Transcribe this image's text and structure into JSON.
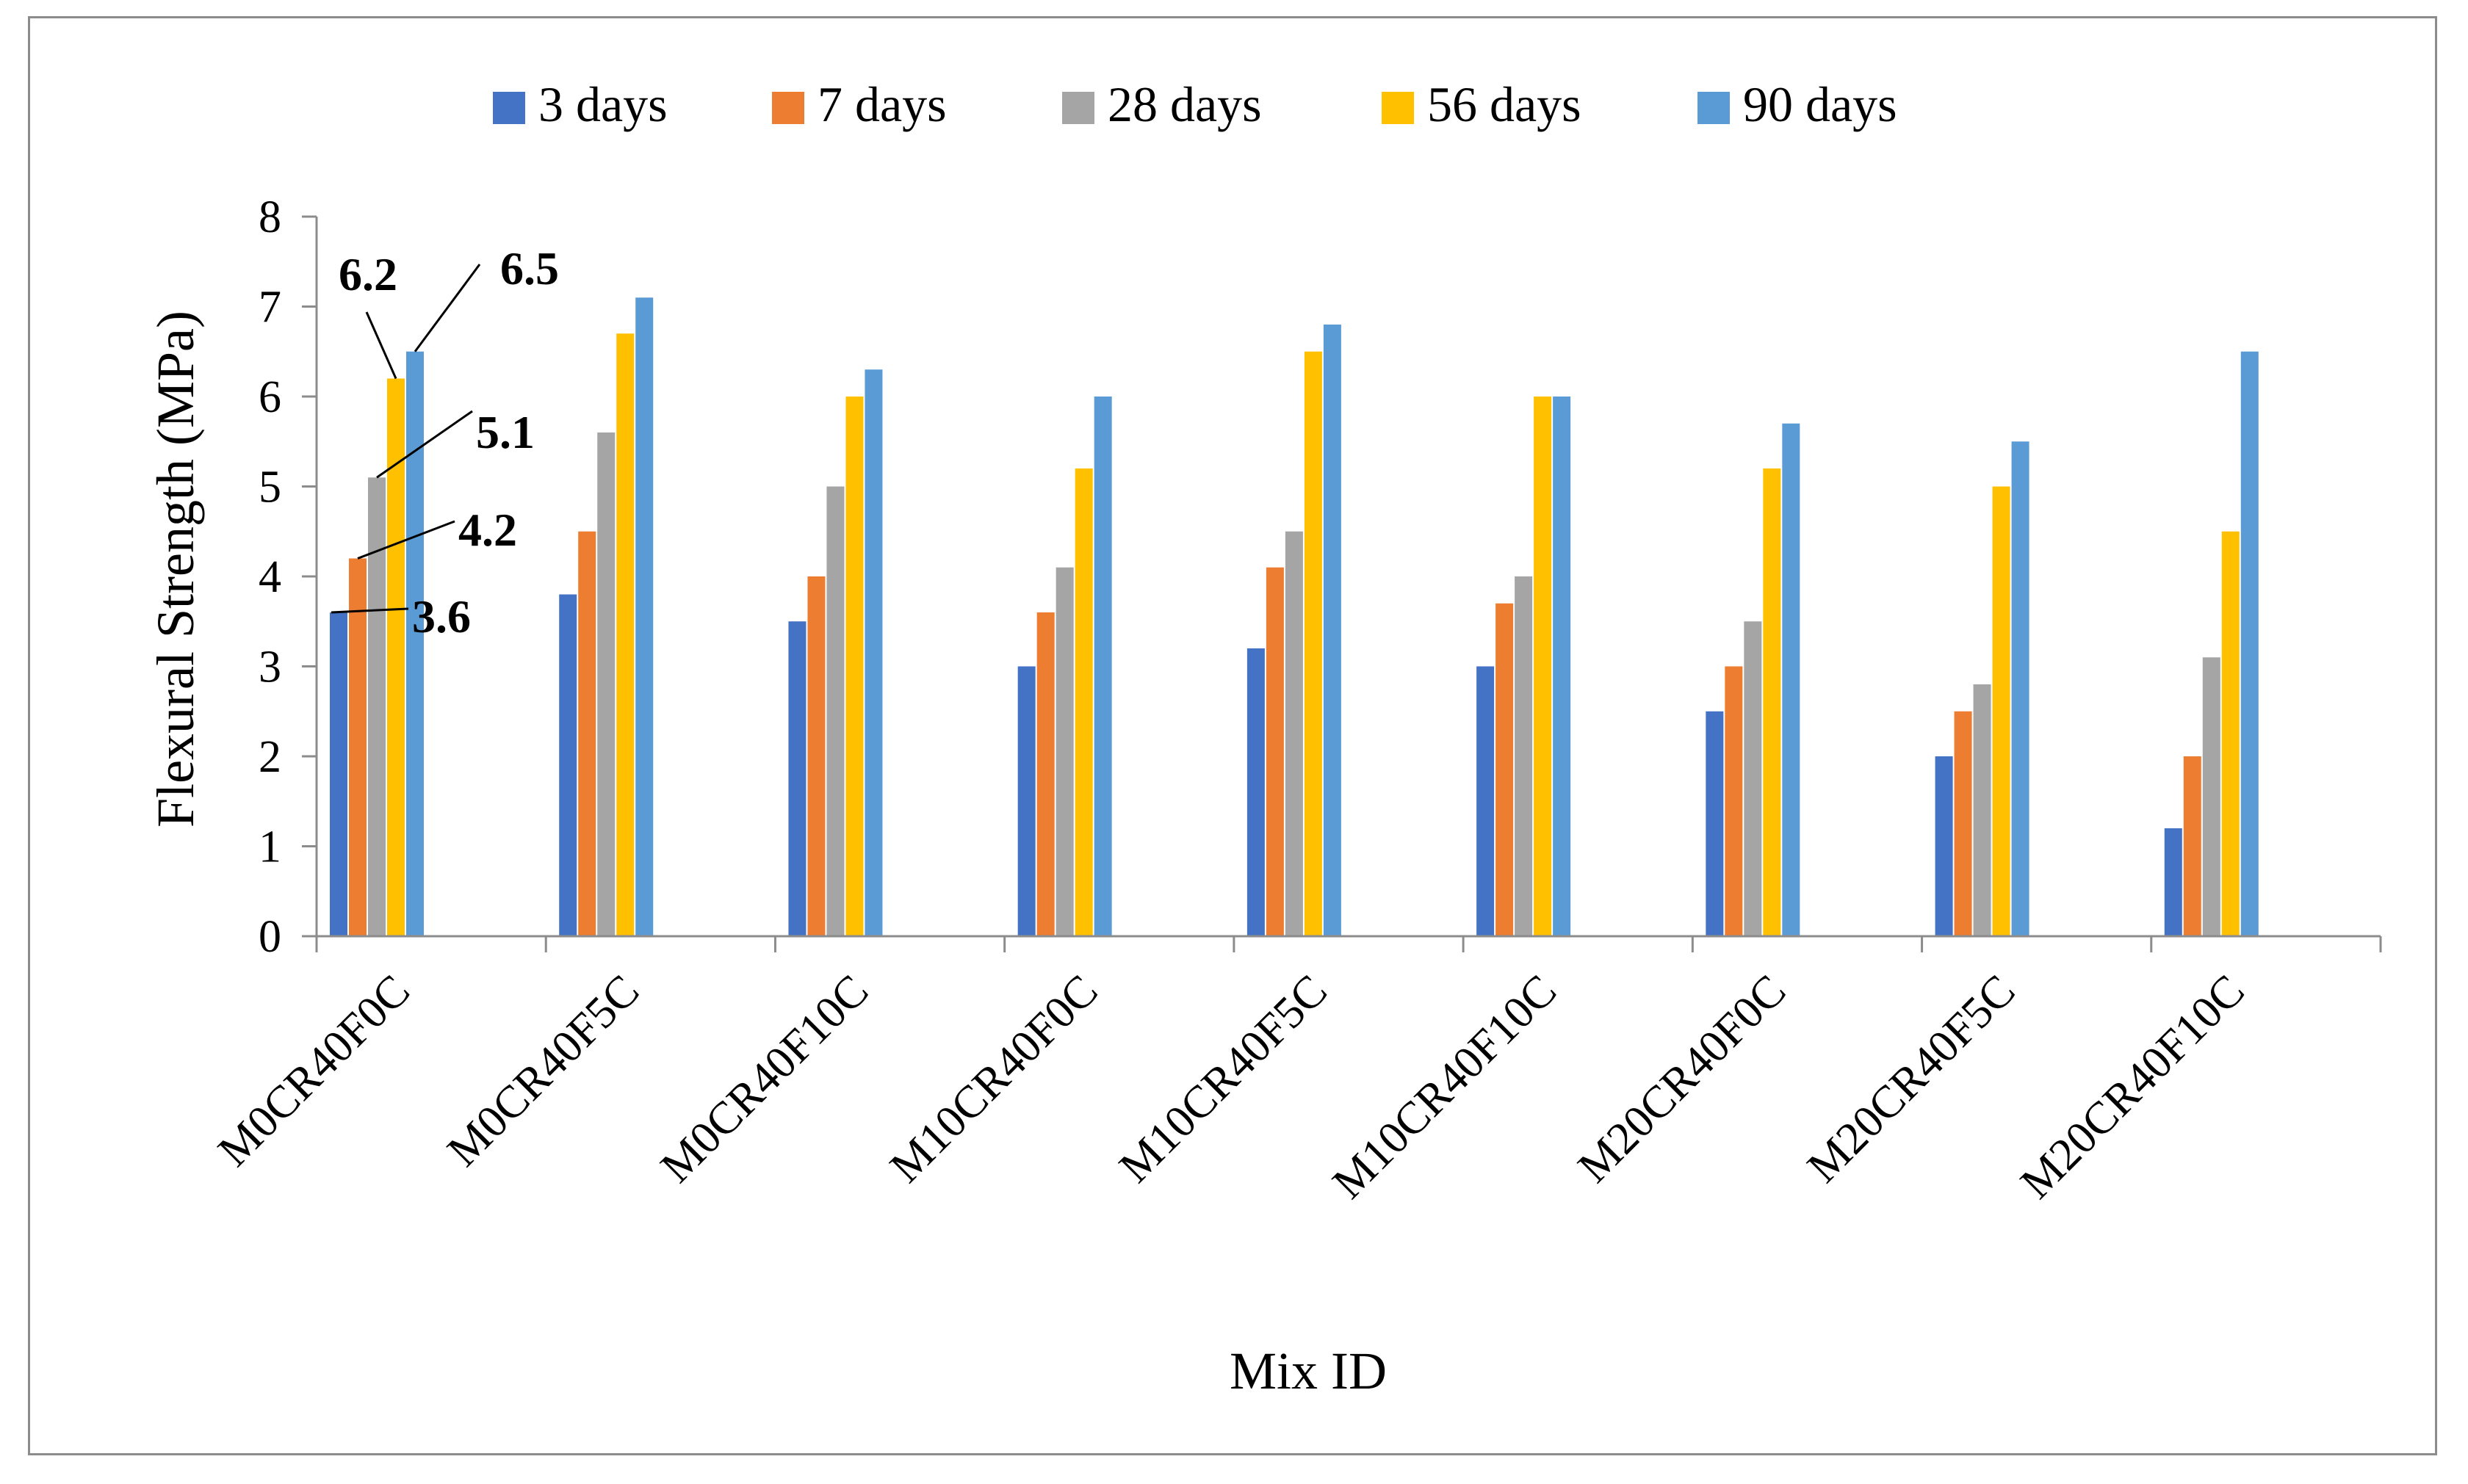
{
  "chart_data": {
    "type": "bar",
    "title": "",
    "xlabel": "Mix ID",
    "ylabel": "Flexural Strength (MPa)",
    "ylim": [
      0,
      8
    ],
    "yticks": [
      0,
      1,
      2,
      3,
      4,
      5,
      6,
      7,
      8
    ],
    "grid": false,
    "legend_position": "top",
    "categories": [
      "M0CR40F0C",
      "M0CR40F5C",
      "M0CR40F10C",
      "M10CR40F0C",
      "M10CR40F5C",
      "M10CR40F10C",
      "M20CR40F0C",
      "M20CR40F5C",
      "M20CR40F10C"
    ],
    "series": [
      {
        "name": "3 days",
        "color": "#4472c4",
        "values": [
          3.6,
          3.8,
          3.5,
          3.0,
          3.2,
          3.0,
          2.5,
          2.0,
          1.2
        ]
      },
      {
        "name": "7 days",
        "color": "#ed7d31",
        "values": [
          4.2,
          4.5,
          4.0,
          3.6,
          4.1,
          3.7,
          3.0,
          2.5,
          2.0
        ]
      },
      {
        "name": "28 days",
        "color": "#a5a5a5",
        "values": [
          5.1,
          5.6,
          5.0,
          4.1,
          4.5,
          4.0,
          3.5,
          2.8,
          3.1
        ]
      },
      {
        "name": "56 days",
        "color": "#ffc000",
        "values": [
          6.2,
          6.7,
          6.0,
          5.2,
          6.5,
          6.0,
          5.2,
          5.0,
          4.5
        ]
      },
      {
        "name": "90 days",
        "color": "#5b9bd5",
        "values": [
          6.5,
          7.1,
          6.3,
          6.0,
          6.8,
          6.0,
          5.7,
          5.5,
          6.5
        ]
      }
    ],
    "annotations": [
      {
        "text": "3.6",
        "category": "M0CR40F0C",
        "series": "3 days",
        "value": 3.6
      },
      {
        "text": "4.2",
        "category": "M0CR40F0C",
        "series": "7 days",
        "value": 4.2
      },
      {
        "text": "5.1",
        "category": "M0CR40F0C",
        "series": "28 days",
        "value": 5.1
      },
      {
        "text": "6.2",
        "category": "M0CR40F0C",
        "series": "56 days",
        "value": 6.2
      },
      {
        "text": "6.5",
        "category": "M0CR40F0C",
        "series": "90 days",
        "value": 6.5
      }
    ]
  }
}
